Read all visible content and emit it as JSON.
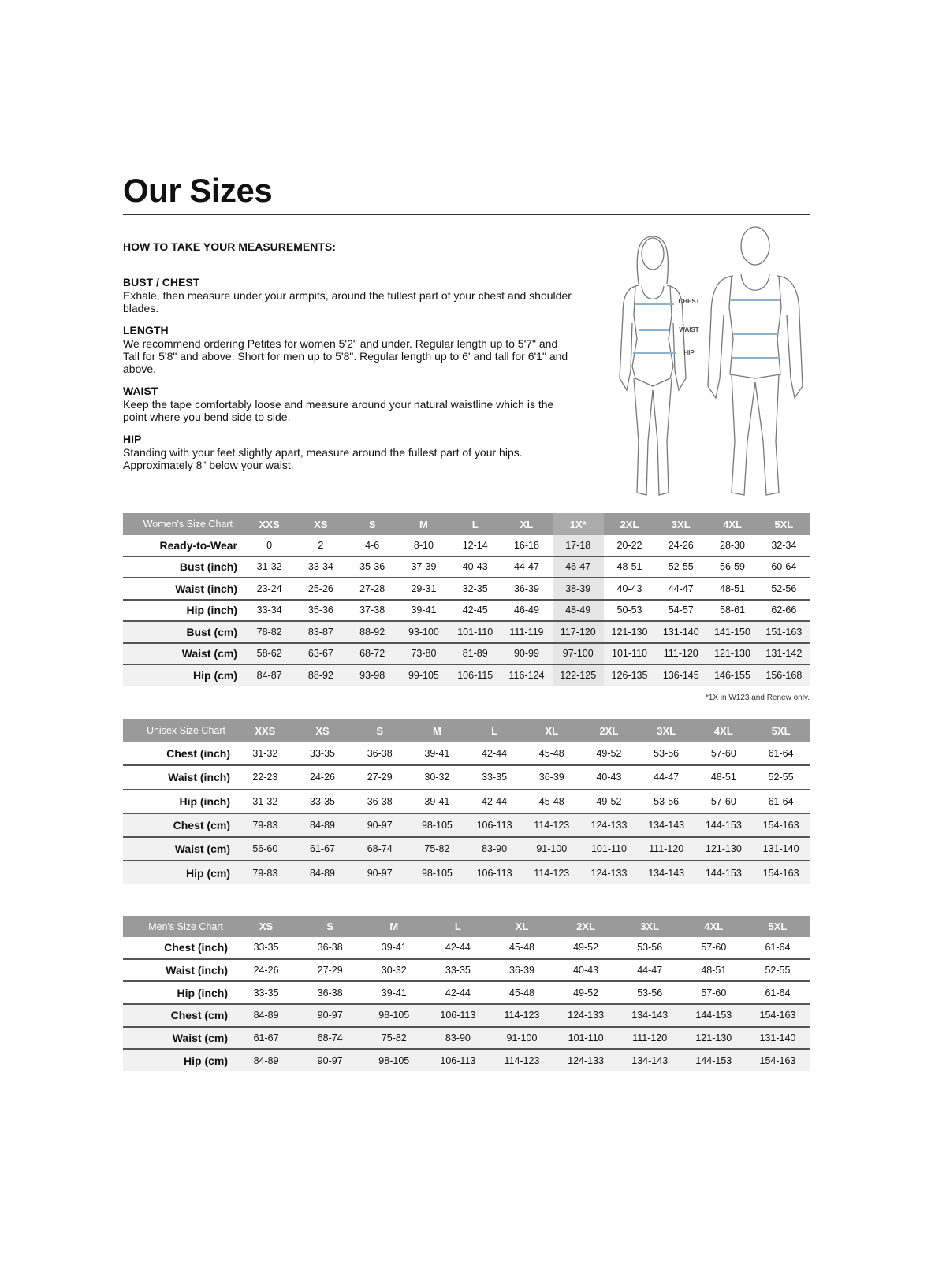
{
  "title": "Our Sizes",
  "howto_heading": "HOW TO TAKE YOUR MEASUREMENTS:",
  "sections": [
    {
      "heading": "BUST / CHEST",
      "text": "Exhale, then measure under your armpits, around the fullest part of your chest and shoulder blades."
    },
    {
      "heading": "LENGTH",
      "text": "We recommend ordering Petites for women 5'2\" and under. Regular length up to 5'7\" and Tall for 5'8\" and above. Short for men up to 5'8\". Regular length up to 6' and tall for 6'1\" and above."
    },
    {
      "heading": "WAIST",
      "text": "Keep the tape comfortably loose and measure around your natural waistline which is the point where you bend side to side."
    },
    {
      "heading": "HIP",
      "text": "Standing with your feet slightly apart, measure around the fullest part of your hips. Approximately 8\" below your waist."
    }
  ],
  "figure": {
    "labels": [
      "CHEST",
      "WAIST",
      "HIP"
    ],
    "measure_color": "#8fb3c9"
  },
  "tables": {
    "women": {
      "title": "Women's Size Chart",
      "highlight_column": "1X*",
      "columns": [
        "XXS",
        "XS",
        "S",
        "M",
        "L",
        "XL",
        "1X*",
        "2XL",
        "3XL",
        "4XL",
        "5XL"
      ],
      "rows": [
        {
          "label": "Ready-to-Wear",
          "values": [
            "0",
            "2",
            "4-6",
            "8-10",
            "12-14",
            "16-18",
            "17-18",
            "20-22",
            "24-26",
            "28-30",
            "32-34"
          ]
        },
        {
          "label": "Bust (inch)",
          "values": [
            "31-32",
            "33-34",
            "35-36",
            "37-39",
            "40-43",
            "44-47",
            "46-47",
            "48-51",
            "52-55",
            "56-59",
            "60-64"
          ]
        },
        {
          "label": "Waist (inch)",
          "values": [
            "23-24",
            "25-26",
            "27-28",
            "29-31",
            "32-35",
            "36-39",
            "38-39",
            "40-43",
            "44-47",
            "48-51",
            "52-56"
          ]
        },
        {
          "label": "Hip (inch)",
          "values": [
            "33-34",
            "35-36",
            "37-38",
            "39-41",
            "42-45",
            "46-49",
            "48-49",
            "50-53",
            "54-57",
            "58-61",
            "62-66"
          ]
        },
        {
          "label": "Bust (cm)",
          "values": [
            "78-82",
            "83-87",
            "88-92",
            "93-100",
            "101-110",
            "111-119",
            "117-120",
            "121-130",
            "131-140",
            "141-150",
            "151-163"
          ]
        },
        {
          "label": "Waist (cm)",
          "values": [
            "58-62",
            "63-67",
            "68-72",
            "73-80",
            "81-89",
            "90-99",
            "97-100",
            "101-110",
            "111-120",
            "121-130",
            "131-142"
          ]
        },
        {
          "label": "Hip (cm)",
          "values": [
            "84-87",
            "88-92",
            "93-98",
            "99-105",
            "106-115",
            "116-124",
            "122-125",
            "126-135",
            "136-145",
            "146-155",
            "156-168"
          ]
        }
      ],
      "footnote": "*1X in W123 and Renew only."
    },
    "unisex": {
      "title": "Unisex Size Chart",
      "columns": [
        "XXS",
        "XS",
        "S",
        "M",
        "L",
        "XL",
        "2XL",
        "3XL",
        "4XL",
        "5XL"
      ],
      "rows": [
        {
          "label": "Chest (inch)",
          "values": [
            "31-32",
            "33-35",
            "36-38",
            "39-41",
            "42-44",
            "45-48",
            "49-52",
            "53-56",
            "57-60",
            "61-64"
          ]
        },
        {
          "label": "Waist (inch)",
          "values": [
            "22-23",
            "24-26",
            "27-29",
            "30-32",
            "33-35",
            "36-39",
            "40-43",
            "44-47",
            "48-51",
            "52-55"
          ]
        },
        {
          "label": "Hip (inch)",
          "values": [
            "31-32",
            "33-35",
            "36-38",
            "39-41",
            "42-44",
            "45-48",
            "49-52",
            "53-56",
            "57-60",
            "61-64"
          ]
        },
        {
          "label": "Chest (cm)",
          "values": [
            "79-83",
            "84-89",
            "90-97",
            "98-105",
            "106-113",
            "114-123",
            "124-133",
            "134-143",
            "144-153",
            "154-163"
          ]
        },
        {
          "label": "Waist (cm)",
          "values": [
            "56-60",
            "61-67",
            "68-74",
            "75-82",
            "83-90",
            "91-100",
            "101-110",
            "111-120",
            "121-130",
            "131-140"
          ]
        },
        {
          "label": "Hip (cm)",
          "values": [
            "79-83",
            "84-89",
            "90-97",
            "98-105",
            "106-113",
            "114-123",
            "124-133",
            "134-143",
            "144-153",
            "154-163"
          ]
        }
      ]
    },
    "men": {
      "title": "Men's Size Chart",
      "columns": [
        "XS",
        "S",
        "M",
        "L",
        "XL",
        "2XL",
        "3XL",
        "4XL",
        "5XL"
      ],
      "rows": [
        {
          "label": "Chest (inch)",
          "values": [
            "33-35",
            "36-38",
            "39-41",
            "42-44",
            "45-48",
            "49-52",
            "53-56",
            "57-60",
            "61-64"
          ]
        },
        {
          "label": "Waist (inch)",
          "values": [
            "24-26",
            "27-29",
            "30-32",
            "33-35",
            "36-39",
            "40-43",
            "44-47",
            "48-51",
            "52-55"
          ]
        },
        {
          "label": "Hip (inch)",
          "values": [
            "33-35",
            "36-38",
            "39-41",
            "42-44",
            "45-48",
            "49-52",
            "53-56",
            "57-60",
            "61-64"
          ]
        },
        {
          "label": "Chest (cm)",
          "values": [
            "84-89",
            "90-97",
            "98-105",
            "106-113",
            "114-123",
            "124-133",
            "134-143",
            "144-153",
            "154-163"
          ]
        },
        {
          "label": "Waist (cm)",
          "values": [
            "61-67",
            "68-74",
            "75-82",
            "83-90",
            "91-100",
            "101-110",
            "111-120",
            "121-130",
            "131-140"
          ]
        },
        {
          "label": "Hip (cm)",
          "values": [
            "84-89",
            "90-97",
            "98-105",
            "106-113",
            "114-123",
            "124-133",
            "134-143",
            "144-153",
            "154-163"
          ]
        }
      ]
    }
  }
}
